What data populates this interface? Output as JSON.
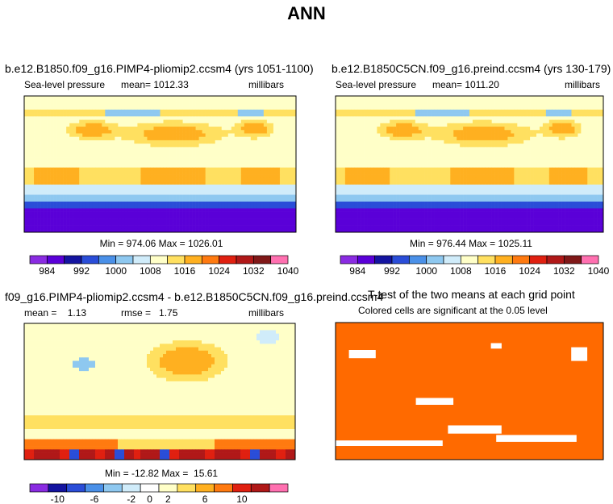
{
  "figure_title": "ANN",
  "chart_data": [
    {
      "type": "heatmap",
      "panel": "case",
      "title": "b.e12.B1850.f09_g16.PIMP4-pliomip2.ccsm4 (yrs 1051-1100)",
      "variable": "Sea-level pressure",
      "mean_label": "mean=",
      "mean": "1012.33",
      "units": "millibars",
      "min_label": "Min =",
      "min": "974.06",
      "max_label": "Max =",
      "max": "1026.01",
      "colorbar_ticks": [
        "984",
        "992",
        "1000",
        "1008",
        "1016",
        "1024",
        "1032",
        "1040"
      ]
    },
    {
      "type": "heatmap",
      "panel": "control",
      "title": "b.e12.B1850C5CN.f09_g16.preind.ccsm4 (yrs 130-179)",
      "variable": "Sea-level pressure",
      "mean_label": "mean=",
      "mean": "1011.20",
      "units": "millibars",
      "min_label": "Min =",
      "min": "976.44",
      "max_label": "Max =",
      "max": "1025.11",
      "colorbar_ticks": [
        "984",
        "992",
        "1000",
        "1008",
        "1016",
        "1024",
        "1032",
        "1040"
      ]
    },
    {
      "type": "heatmap",
      "panel": "difference",
      "title": "f09_g16.PIMP4-pliomip2.ccsm4 - b.e12.B1850C5CN.f09_g16.preind.ccsm4",
      "mean_label": "mean =",
      "mean": "1.13",
      "rmse_label": "rmse =",
      "rmse": "1.75",
      "units": "millibars",
      "min_label": "Min =",
      "min": "-12.82",
      "max_label": "Max =",
      "max": "15.61",
      "colorbar_ticks": [
        "-10",
        "-6",
        "-2",
        "0",
        "2",
        "6",
        "10"
      ]
    },
    {
      "type": "heatmap",
      "panel": "ttest",
      "title": "T-test of the two means at each grid point",
      "subtitle": "Colored cells are significant at the 0.05 level"
    }
  ],
  "palettes": {
    "abs": [
      "#8a2be2",
      "#5a00d8",
      "#1414a0",
      "#2a4dd8",
      "#4a90e8",
      "#8ec8f0",
      "#d0ecfa",
      "#ffffc8",
      "#ffe060",
      "#ffb020",
      "#ff7a10",
      "#e02010",
      "#b01818",
      "#801818",
      "#ff70b0"
    ],
    "diff": [
      "#8a2be2",
      "#1414a0",
      "#2a4dd8",
      "#4a90e8",
      "#8ec8f0",
      "#d0ecfa",
      "#ffffff",
      "#ffffc8",
      "#ffe060",
      "#ffb020",
      "#ff7a10",
      "#e02010",
      "#b01818",
      "#ff70b0"
    ],
    "ttest": "#ff6a00"
  }
}
